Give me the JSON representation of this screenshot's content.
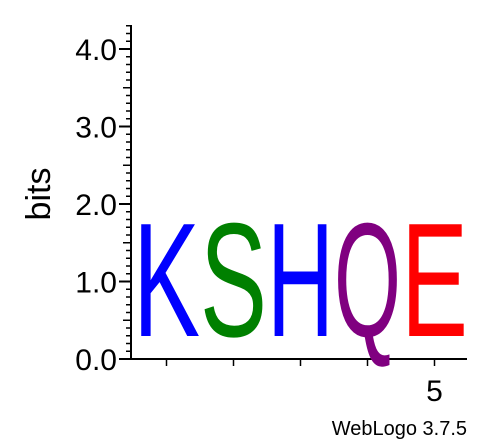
{
  "chart_data": {
    "type": "sequence-logo",
    "ylabel": "bits",
    "ylim": [
      0,
      4.32
    ],
    "yticks": [
      {
        "value": 0.0,
        "label": "0.0"
      },
      {
        "value": 1.0,
        "label": "1.0"
      },
      {
        "value": 2.0,
        "label": "2.0"
      },
      {
        "value": 3.0,
        "label": "3.0"
      },
      {
        "value": 4.0,
        "label": "4.0"
      }
    ],
    "xtick_labels": [
      {
        "position": 5,
        "label": "5"
      }
    ],
    "positions": [
      1,
      2,
      3,
      4,
      5
    ],
    "letters": [
      {
        "position": 1,
        "letter": "K",
        "bits": 1.76,
        "color": "#0000ff"
      },
      {
        "position": 2,
        "letter": "S",
        "bits": 1.76,
        "color": "#008000"
      },
      {
        "position": 3,
        "letter": "H",
        "bits": 1.76,
        "color": "#0000ff"
      },
      {
        "position": 4,
        "letter": "Q",
        "bits": 1.76,
        "color": "#800080"
      },
      {
        "position": 5,
        "letter": "E",
        "bits": 1.76,
        "color": "#ff0000"
      }
    ],
    "grid": false
  },
  "footer": {
    "credit": "WebLogo 3.7.5"
  }
}
